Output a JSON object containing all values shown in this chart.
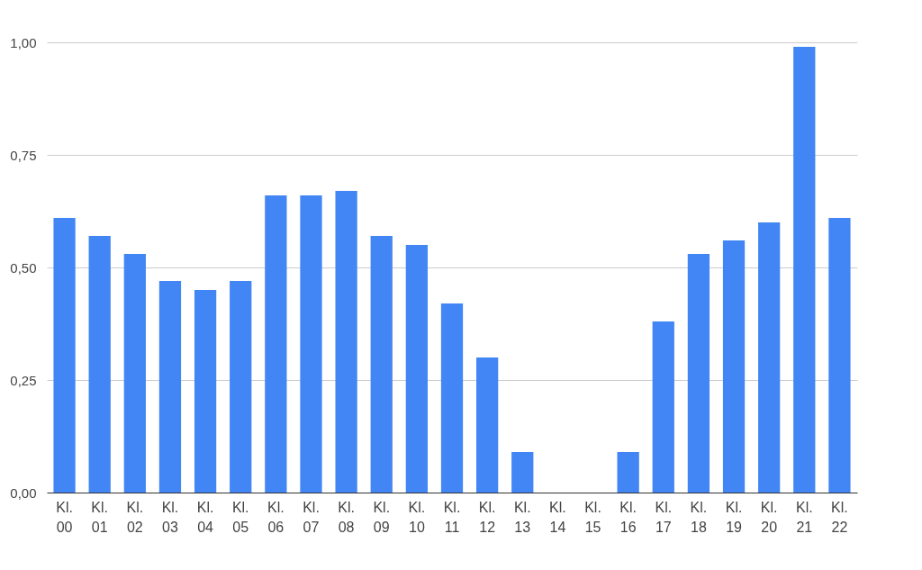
{
  "chart_data": {
    "type": "bar",
    "categories": [
      "Kl. 00",
      "Kl. 01",
      "Kl. 02",
      "Kl. 03",
      "Kl. 04",
      "Kl. 05",
      "Kl. 06",
      "Kl. 07",
      "Kl. 08",
      "Kl. 09",
      "Kl. 10",
      "Kl. 11",
      "Kl. 12",
      "Kl. 13",
      "Kl. 14",
      "Kl. 15",
      "Kl. 16",
      "Kl. 17",
      "Kl. 18",
      "Kl. 19",
      "Kl. 20",
      "Kl. 21",
      "Kl. 22"
    ],
    "values": [
      0.61,
      0.57,
      0.53,
      0.47,
      0.45,
      0.47,
      0.66,
      0.66,
      0.67,
      0.57,
      0.55,
      0.42,
      0.3,
      0.09,
      0,
      0,
      0.09,
      0.38,
      0.53,
      0.56,
      0.6,
      0.99,
      0.61
    ],
    "color": "#4285f4",
    "ylim": [
      0,
      1
    ],
    "yticks": [
      {
        "value": 0,
        "label": "0,00"
      },
      {
        "value": 0.25,
        "label": "0,25"
      },
      {
        "value": 0.5,
        "label": "0,50"
      },
      {
        "value": 0.75,
        "label": "0,75"
      },
      {
        "value": 1,
        "label": "1,00"
      }
    ],
    "grid": "y"
  }
}
